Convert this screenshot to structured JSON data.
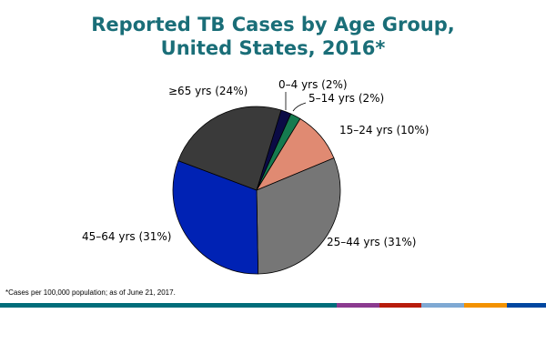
{
  "chart_data": {
    "type": "pie",
    "title": [
      "Reported TB Cases by Age Group,",
      "United States, 2016*"
    ],
    "slices": [
      {
        "label": "0–4 yrs (2%)",
        "value": 2,
        "color": "#0b0b45"
      },
      {
        "label": "5–14 yrs (2%)",
        "value": 2,
        "color": "#157a4f"
      },
      {
        "label": "15–24 yrs (10%)",
        "value": 10,
        "color": "#e08a72"
      },
      {
        "label": "25–44 yrs  (31%)",
        "value": 31,
        "color": "#767676"
      },
      {
        "label": "45–64 yrs (31%)",
        "value": 31,
        "color": "#0022b4"
      },
      {
        "label": "≥65 yrs (24%)",
        "value": 24,
        "color": "#3a3a3a"
      }
    ],
    "footnote": "*Cases per 100,000  population; as of June 21, 2017."
  },
  "footer_bar_colors": [
    "#006d7a",
    "#8b3a8f",
    "#b81c0c",
    "#7fa9d3",
    "#f39200",
    "#0047a0"
  ]
}
